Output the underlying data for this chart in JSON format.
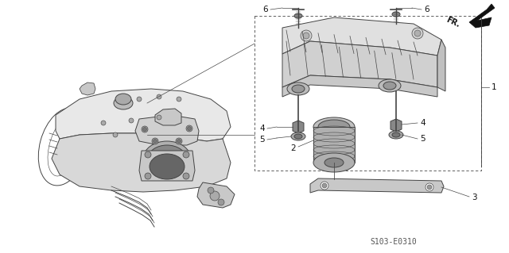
{
  "bg_color": "#ffffff",
  "line_color": "#444444",
  "dark_color": "#111111",
  "gray1": "#cccccc",
  "gray2": "#aaaaaa",
  "gray3": "#888888",
  "label_1": "1",
  "label_2": "2",
  "label_3": "3",
  "label_4": "4",
  "label_5": "5",
  "label_6": "6",
  "diagram_code": "S103-E0310",
  "fr_text": "FR."
}
